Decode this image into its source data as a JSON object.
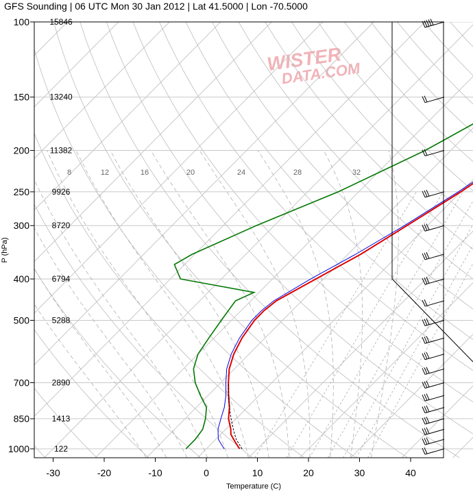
{
  "chart_data": {
    "type": "line",
    "title": "GFS Sounding | 06 UTC Mon 30 Jan 2012 | Lat 41.5000 | Lon -70.5000",
    "xlabel": "Temperature (C)",
    "ylabel": "P (hPa)",
    "x_ticks": [
      -30,
      -20,
      -10,
      0,
      10,
      20,
      30,
      40
    ],
    "y_ticks": [
      100,
      150,
      200,
      250,
      300,
      400,
      500,
      700,
      850,
      1000
    ],
    "x_range": [
      -34,
      50
    ],
    "y_range_hpa": [
      100,
      1050
    ],
    "y_scale": "log",
    "heights": [
      {
        "p": 100,
        "text": "15846"
      },
      {
        "p": 150,
        "text": "13240"
      },
      {
        "p": 200,
        "text": "11382"
      },
      {
        "p": 250,
        "text": "9926"
      },
      {
        "p": 300,
        "text": "8720"
      },
      {
        "p": 400,
        "text": "6794"
      },
      {
        "p": 500,
        "text": "5288"
      },
      {
        "p": 700,
        "text": "2890"
      },
      {
        "p": 850,
        "text": "1413"
      },
      {
        "p": 1000,
        "text": "122"
      }
    ],
    "mixing_ratio_labels": [
      "8",
      "12",
      "16",
      "20",
      "24",
      "28",
      "32"
    ],
    "series": [
      {
        "color": "#dd0000",
        "points": [
          [
            1000,
            6.5
          ],
          [
            975,
            5
          ],
          [
            950,
            3.5
          ],
          [
            925,
            2
          ],
          [
            900,
            1
          ],
          [
            850,
            -1.5
          ],
          [
            800,
            -3.5
          ],
          [
            750,
            -6
          ],
          [
            700,
            -8.5
          ],
          [
            650,
            -11
          ],
          [
            600,
            -13
          ],
          [
            550,
            -14.5
          ],
          [
            500,
            -15.5
          ],
          [
            475,
            -15.5
          ],
          [
            450,
            -15
          ],
          [
            400,
            -11.5
          ],
          [
            350,
            -7.5
          ],
          [
            300,
            -4
          ],
          [
            250,
            0
          ],
          [
            200,
            4
          ],
          [
            150,
            8.5
          ],
          [
            100,
            15
          ]
        ]
      },
      {
        "color": "#0000dd",
        "points": [
          [
            1000,
            3.5
          ],
          [
            975,
            2
          ],
          [
            950,
            0.5
          ],
          [
            925,
            -0.5
          ],
          [
            900,
            -1.5
          ],
          [
            850,
            -3
          ],
          [
            800,
            -4.5
          ],
          [
            750,
            -6.5
          ],
          [
            700,
            -9
          ],
          [
            650,
            -11.5
          ],
          [
            600,
            -13.5
          ],
          [
            550,
            -15
          ],
          [
            500,
            -16
          ],
          [
            475,
            -16
          ],
          [
            450,
            -15.5
          ],
          [
            400,
            -12.5
          ],
          [
            350,
            -8.5
          ],
          [
            300,
            -4.5
          ],
          [
            250,
            -0.5
          ],
          [
            200,
            3.5
          ],
          [
            150,
            7.5
          ],
          [
            100,
            14
          ]
        ]
      },
      {
        "color": "#007700",
        "points": [
          [
            1000,
            -4
          ],
          [
            950,
            -4
          ],
          [
            900,
            -4.5
          ],
          [
            850,
            -6
          ],
          [
            800,
            -8
          ],
          [
            750,
            -11.5
          ],
          [
            700,
            -15
          ],
          [
            650,
            -18
          ],
          [
            600,
            -20
          ],
          [
            550,
            -21
          ],
          [
            500,
            -22
          ],
          [
            450,
            -23
          ],
          [
            430,
            -21
          ],
          [
            400,
            -38
          ],
          [
            370,
            -42
          ],
          [
            350,
            -40.5
          ],
          [
            300,
            -33.5
          ],
          [
            250,
            -24
          ],
          [
            200,
            -15
          ],
          [
            150,
            -6.5
          ],
          [
            100,
            3
          ]
        ]
      }
    ],
    "parcel": {
      "color": "#000000",
      "points": [
        [
          1000,
          7
        ],
        [
          950,
          4
        ],
        [
          900,
          1.5
        ],
        [
          850,
          -1
        ],
        [
          800,
          -3.5
        ],
        [
          750,
          -6
        ],
        [
          700,
          -8.5
        ]
      ]
    },
    "wind_barbs": [
      {
        "p": 100,
        "knots": 50
      },
      {
        "p": 150,
        "knots": 20
      },
      {
        "p": 200,
        "knots": 20
      },
      {
        "p": 250,
        "knots": 25
      },
      {
        "p": 300,
        "knots": 30
      },
      {
        "p": 350,
        "knots": 30
      },
      {
        "p": 400,
        "knots": 25
      },
      {
        "p": 450,
        "knots": 20
      },
      {
        "p": 500,
        "knots": 25
      },
      {
        "p": 550,
        "knots": 30
      },
      {
        "p": 600,
        "knots": 30
      },
      {
        "p": 650,
        "knots": 30
      },
      {
        "p": 700,
        "knots": 30
      },
      {
        "p": 750,
        "knots": 30
      },
      {
        "p": 800,
        "knots": 30
      },
      {
        "p": 850,
        "knots": 30
      },
      {
        "p": 900,
        "knots": 30
      },
      {
        "p": 950,
        "knots": 30
      },
      {
        "p": 1000,
        "knots": 20
      }
    ]
  },
  "watermark": {
    "line1": "WISTER",
    "line2": "DATA.COM"
  }
}
